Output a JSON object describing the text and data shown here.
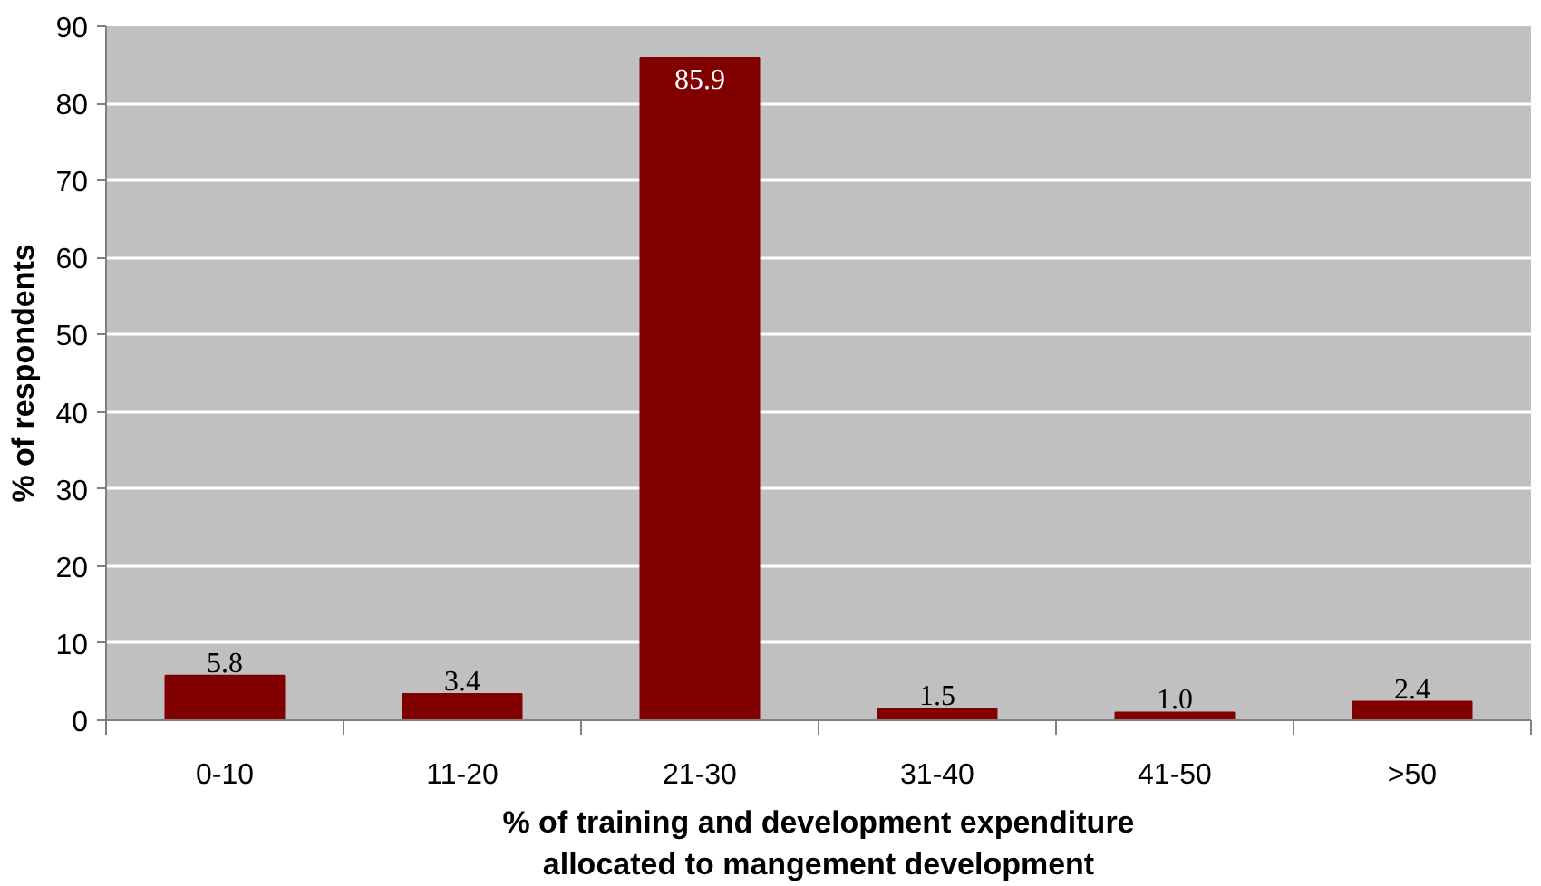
{
  "chart_data": {
    "type": "bar",
    "xlabel": "% of training and development expenditure\nallocated to mangement development",
    "ylabel": "% of respondents",
    "categories": [
      "0-10",
      "11-20",
      "21-30",
      "31-40",
      "41-50",
      ">50"
    ],
    "values": [
      5.8,
      3.4,
      85.9,
      1.5,
      1.0,
      2.4
    ],
    "value_labels": [
      "5.8",
      "3.4",
      "85.9",
      "1.5",
      "1.0",
      "2.4"
    ],
    "color": "#800000",
    "ylim": [
      0,
      90
    ],
    "yticks": [
      0,
      10,
      20,
      30,
      40,
      50,
      60,
      70,
      80,
      90
    ],
    "grid": "y"
  }
}
